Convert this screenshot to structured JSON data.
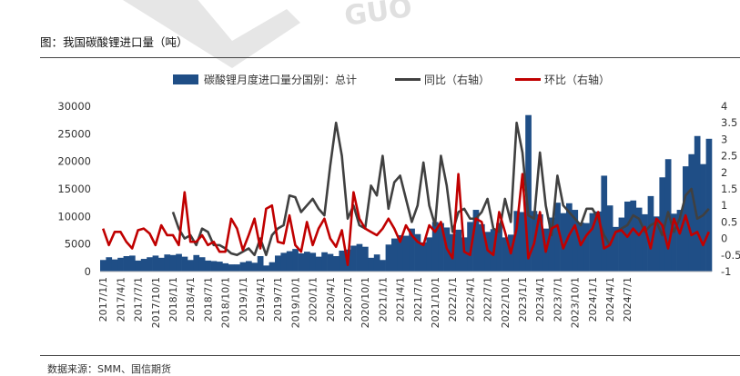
{
  "page": {
    "caption": "图：我国碳酸锂进口量（吨）",
    "source": "数据来源：SMM、国信期货",
    "watermark": "GUO"
  },
  "colors": {
    "bar": "#1f4e86",
    "yoy_line": "#404040",
    "mom_line": "#c00000",
    "watermark": "#e6e6e6"
  },
  "chart_data": {
    "type": "bar",
    "title": "",
    "legend_position": "top",
    "grid": false,
    "x_tick_labels": [
      "2017/1/1",
      "2017/4/1",
      "2017/7/1",
      "2017/10/1",
      "2018/1/1",
      "2018/4/1",
      "2018/7/1",
      "2018/10/1",
      "2019/1/1",
      "2019/4/1",
      "2019/7/1",
      "2019/10/1",
      "2020/1/1",
      "2020/4/1",
      "2020/7/1",
      "2020/10/1",
      "2021/1/1",
      "2021/4/1",
      "2021/7/1",
      "2021/10/1",
      "2022/1/1",
      "2022/4/1",
      "2022/7/1",
      "2022/10/1",
      "2023/1/1",
      "2023/4/1",
      "2023/7/1",
      "2023/10/1",
      "2024/1/1",
      "2024/4/1",
      "2024/7/1"
    ],
    "y_left": {
      "min": 0,
      "max": 30000,
      "ticks": [
        "0",
        "5000",
        "10000",
        "15000",
        "20000",
        "25000",
        "30000"
      ]
    },
    "y_right": {
      "min": -1,
      "max": 4,
      "ticks": [
        "-1",
        "-0.5",
        "0",
        "0.5",
        "1",
        "1.5",
        "2",
        "2.5",
        "3",
        "3.5",
        "4"
      ]
    },
    "series": [
      {
        "name": "碳酸锂月度进口量分国别：总计",
        "type": "bar",
        "axis": "left",
        "values": [
          2100,
          2600,
          2200,
          2500,
          2800,
          2900,
          2000,
          2300,
          2600,
          2900,
          2500,
          3100,
          3000,
          3200,
          2700,
          2100,
          3000,
          2600,
          2000,
          1900,
          1800,
          1500,
          1300,
          1300,
          1700,
          1900,
          1600,
          2800,
          1100,
          1700,
          2900,
          3400,
          3700,
          4100,
          3300,
          3600,
          3400,
          2700,
          3500,
          3200,
          2800,
          3800,
          4000,
          4700,
          5000,
          4500,
          2500,
          3100,
          2100,
          4900,
          6000,
          6600,
          6500,
          7800,
          6800,
          5300,
          6200,
          9000,
          8800,
          8000,
          6800,
          7600,
          6200,
          9000,
          11200,
          8600,
          7200,
          7700,
          8800,
          6200,
          6700,
          11000,
          10800,
          28400,
          11000,
          10400,
          7800,
          9800,
          12500,
          10600,
          12400,
          11200,
          8900,
          8800,
          10600,
          10900,
          17400,
          12000,
          8100,
          9800,
          12700,
          12900,
          11600,
          10400,
          13700,
          10000,
          17100,
          20400,
          10500,
          11200,
          19100,
          21300,
          24600,
          19500,
          24100
        ]
      },
      {
        "name": "同比（右轴）",
        "type": "line",
        "axis": "right",
        "values": [
          null,
          null,
          null,
          null,
          null,
          null,
          null,
          null,
          null,
          null,
          null,
          null,
          0.8,
          0.3,
          0,
          0.1,
          -0.2,
          0.3,
          0.2,
          -0.2,
          -0.2,
          -0.3,
          -0.45,
          -0.5,
          -0.4,
          -0.3,
          -0.5,
          0,
          -0.5,
          0.1,
          0.3,
          0.4,
          1.3,
          1.25,
          0.8,
          1.0,
          1.2,
          0.9,
          0.7,
          2.2,
          3.5,
          2.5,
          0.6,
          1.0,
          0.4,
          0.3,
          1.6,
          1.3,
          2.5,
          0.9,
          1.7,
          1.9,
          1.2,
          0.5,
          1.0,
          2.3,
          1.0,
          0.4,
          2.5,
          1.6,
          0.2,
          0.8,
          0.9,
          0.6,
          0.6,
          0.8,
          1.2,
          0.3,
          0.2,
          1.2,
          0.5,
          3.5,
          2.6,
          0.7,
          0.6,
          2.6,
          1.0,
          0.1,
          1.9,
          1.0,
          0.8,
          0.6,
          0.4,
          0.9,
          0.9,
          0.6,
          0.1,
          -0.2,
          0.2,
          0.3,
          0.4,
          0.7,
          0.6,
          0.2,
          0.4,
          0.5,
          0.1,
          0.8,
          0.2,
          0.6,
          1.3,
          1.5,
          0.6,
          0.7,
          0.9
        ]
      },
      {
        "name": "环比（右轴）",
        "type": "line",
        "axis": "right",
        "values": [
          0.3,
          -0.2,
          0.2,
          0.2,
          -0.1,
          -0.3,
          0.25,
          0.3,
          0.15,
          -0.2,
          0.4,
          0.1,
          0.1,
          -0.2,
          1.4,
          -0.1,
          -0.1,
          0.1,
          -0.2,
          -0.1,
          -0.4,
          -0.4,
          0.6,
          0.3,
          -0.35,
          0.1,
          0.6,
          -0.3,
          0.9,
          1.0,
          -0.1,
          -0.15,
          0.7,
          -0.2,
          -0.4,
          0.5,
          -0.2,
          0.3,
          0.6,
          0.0,
          -0.25,
          0.25,
          -0.8,
          1.4,
          0.6,
          0.3,
          0.2,
          0.1,
          0.3,
          0.6,
          0.3,
          -0.1,
          0.4,
          0.1,
          -0.1,
          -0.2,
          0.4,
          0.2,
          0.5,
          -0.3,
          -0.6,
          1.95,
          -0.4,
          -0.5,
          0.6,
          0.5,
          -0.35,
          -0.5,
          0.8,
          0.2,
          -0.45,
          0.3,
          1.95,
          -0.6,
          -0.15,
          0.8,
          -0.4,
          0.3,
          0.4,
          -0.3,
          0.1,
          0.4,
          -0.2,
          0.1,
          0.3,
          0.8,
          -0.3,
          -0.2,
          0.2,
          0.25,
          0.05,
          0.3,
          0.1,
          0.35,
          -0.3,
          0.6,
          0.4,
          -0.3,
          0.6,
          0.15,
          0.7,
          0.1,
          0.2,
          -0.2,
          0.2
        ]
      }
    ]
  }
}
